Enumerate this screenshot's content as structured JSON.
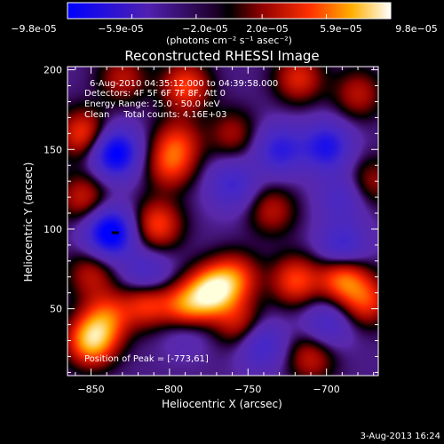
{
  "chart_data": {
    "type": "heatmap",
    "title": "Reconstructed RHESSI Image",
    "xlabel": "Heliocentric X (arcsec)",
    "ylabel": "Heliocentric Y (arcsec)",
    "xlim": [
      -865,
      -667
    ],
    "ylim": [
      8,
      202
    ],
    "xticks": [
      -850,
      -800,
      -750,
      -700
    ],
    "yticks": [
      50,
      100,
      150,
      200
    ],
    "colorbar": {
      "min": -9.8e-05,
      "max": 9.8e-05,
      "tick_labels": [
        "-9.8e-05",
        "-5.9e-05",
        "-2.0e-05",
        "2.0e-05",
        "5.9e-05",
        "9.8e-05"
      ],
      "units_label": "(photons cm⁻² s⁻¹ asec⁻²)"
    },
    "annotations": {
      "time_range": "6-Aug-2010 04:35:12.000 to 04:39:58.000",
      "detectors": "Detectors: 4F 5F 6F 7F 8F, Att 0",
      "energy_range": "Energy Range: 25.0 - 50.0 keV",
      "clean_counts": "Clean     Total counts: 4.16E+03",
      "peak_position": "Position of Peak = [-773,61]"
    },
    "peak": [
      -773,
      61
    ],
    "features": [
      {
        "x": -835,
        "y": 148,
        "v": -9e-05
      },
      {
        "x": -838,
        "y": 98,
        "v": -9.6e-05
      },
      {
        "x": -730,
        "y": 150,
        "v": -5.5e-05
      },
      {
        "x": -700,
        "y": 152,
        "v": -6.5e-05
      },
      {
        "x": -760,
        "y": 128,
        "v": -4.5e-05
      },
      {
        "x": -815,
        "y": 70,
        "v": -5e-05
      },
      {
        "x": -690,
        "y": 88,
        "v": -5.5e-05
      },
      {
        "x": -742,
        "y": 28,
        "v": -5e-05
      },
      {
        "x": -790,
        "y": 40,
        "v": -4e-05
      },
      {
        "x": -700,
        "y": 40,
        "v": -4e-05
      },
      {
        "x": -690,
        "y": 120,
        "v": -3.5e-05
      },
      {
        "x": -773,
        "y": 61,
        "v": 9.8e-05
      },
      {
        "x": -790,
        "y": 50,
        "v": 8.5e-05
      },
      {
        "x": -815,
        "y": 55,
        "v": 6.5e-05
      },
      {
        "x": -758,
        "y": 70,
        "v": 5.5e-05
      },
      {
        "x": -850,
        "y": 30,
        "v": 9e-05
      },
      {
        "x": -840,
        "y": 45,
        "v": 5.5e-05
      },
      {
        "x": -720,
        "y": 68,
        "v": 6e-05
      },
      {
        "x": -690,
        "y": 70,
        "v": 7.5e-05
      },
      {
        "x": -675,
        "y": 55,
        "v": 5.5e-05
      },
      {
        "x": -755,
        "y": 40,
        "v": 4.5e-05
      },
      {
        "x": -855,
        "y": 160,
        "v": 6e-05
      },
      {
        "x": -800,
        "y": 140,
        "v": 5e-05
      },
      {
        "x": -795,
        "y": 155,
        "v": 4.5e-05
      },
      {
        "x": -790,
        "y": 190,
        "v": 6e-05
      },
      {
        "x": -808,
        "y": 103,
        "v": 6e-05
      },
      {
        "x": -855,
        "y": 120,
        "v": 4.5e-05
      },
      {
        "x": -850,
        "y": 72,
        "v": 4e-05
      },
      {
        "x": -718,
        "y": 195,
        "v": 5e-05
      },
      {
        "x": -680,
        "y": 185,
        "v": 4e-05
      },
      {
        "x": -735,
        "y": 112,
        "v": 4e-05
      },
      {
        "x": -710,
        "y": 20,
        "v": 4.5e-05
      },
      {
        "x": -830,
        "y": 195,
        "v": 4e-05
      },
      {
        "x": -760,
        "y": 160,
        "v": 3.5e-05
      },
      {
        "x": -672,
        "y": 130,
        "v": 3.5e-05
      }
    ]
  },
  "footer": {
    "date": "3-Aug-2013 16:24"
  }
}
